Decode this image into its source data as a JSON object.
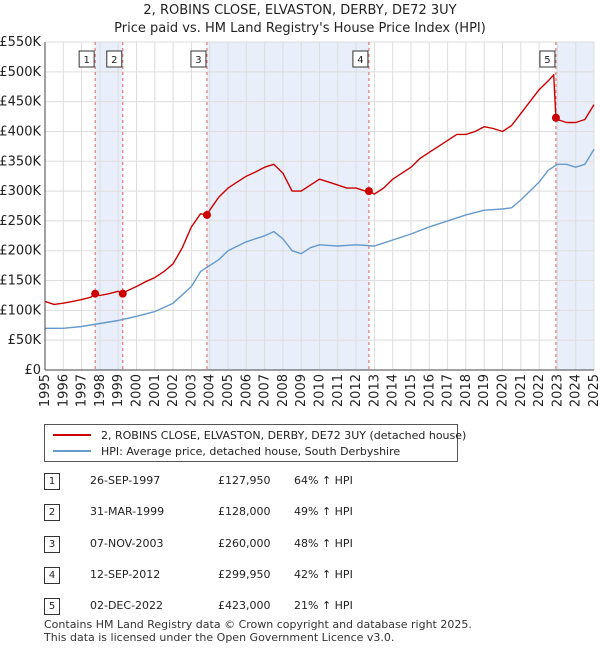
{
  "header": {
    "title": "2, ROBINS CLOSE, ELVASTON, DERBY, DE72 3UY",
    "subtitle": "Price paid vs. HM Land Registry's House Price Index (HPI)"
  },
  "legend": {
    "property_label": "2, ROBINS CLOSE, ELVASTON, DERBY, DE72 3UY (detached house)",
    "hpi_label": "HPI: Average price, detached house, South Derbyshire"
  },
  "colors": {
    "property": "#cc0000",
    "hpi": "#6699cc",
    "shade": "#e8eefa",
    "marker_line": "#e06060"
  },
  "sales": [
    {
      "num": "1",
      "date": "26-SEP-1997",
      "price": "£127,950",
      "hpi": "64% ↑ HPI"
    },
    {
      "num": "2",
      "date": "31-MAR-1999",
      "price": "£128,000",
      "hpi": "49% ↑ HPI"
    },
    {
      "num": "3",
      "date": "07-NOV-2003",
      "price": "£260,000",
      "hpi": "48% ↑ HPI"
    },
    {
      "num": "4",
      "date": "12-SEP-2012",
      "price": "£299,950",
      "hpi": "42% ↑ HPI"
    },
    {
      "num": "5",
      "date": "02-DEC-2022",
      "price": "£423,000",
      "hpi": "21% ↑ HPI"
    }
  ],
  "footer": {
    "line1": "Contains HM Land Registry data © Crown copyright and database right 2025.",
    "line2": "This data is licensed under the Open Government Licence v3.0."
  },
  "chart_data": {
    "type": "line",
    "title": "2, ROBINS CLOSE, ELVASTON, DERBY, DE72 3UY",
    "subtitle": "Price paid vs. HM Land Registry's House Price Index (HPI)",
    "xlabel": "",
    "ylabel": "",
    "xlim": [
      1995,
      2025
    ],
    "ylim": [
      0,
      550000
    ],
    "grid": true,
    "y_ticks": [
      {
        "value": 0,
        "label": "£0"
      },
      {
        "value": 50000,
        "label": "£50K"
      },
      {
        "value": 100000,
        "label": "£100K"
      },
      {
        "value": 150000,
        "label": "£150K"
      },
      {
        "value": 200000,
        "label": "£200K"
      },
      {
        "value": 250000,
        "label": "£250K"
      },
      {
        "value": 300000,
        "label": "£300K"
      },
      {
        "value": 350000,
        "label": "£350K"
      },
      {
        "value": 400000,
        "label": "£400K"
      },
      {
        "value": 450000,
        "label": "£450K"
      },
      {
        "value": 500000,
        "label": "£500K"
      },
      {
        "value": 550000,
        "label": "£550K"
      }
    ],
    "x_ticks": [
      "1995",
      "1996",
      "1997",
      "1998",
      "1999",
      "2000",
      "2001",
      "2002",
      "2003",
      "2004",
      "2005",
      "2006",
      "2007",
      "2008",
      "2009",
      "2010",
      "2011",
      "2012",
      "2013",
      "2014",
      "2015",
      "2016",
      "2017",
      "2018",
      "2019",
      "2020",
      "2021",
      "2022",
      "2023",
      "2024",
      "2025"
    ],
    "shaded_ranges": [
      [
        1997.74,
        1999.25
      ],
      [
        2003.85,
        2012.7
      ],
      [
        2022.92,
        2025.0
      ]
    ],
    "sale_markers": [
      {
        "label": "1",
        "x": 1997.74,
        "y": 127950
      },
      {
        "label": "2",
        "x": 1999.25,
        "y": 128000
      },
      {
        "label": "3",
        "x": 2003.85,
        "y": 260000
      },
      {
        "label": "4",
        "x": 2012.7,
        "y": 299950
      },
      {
        "label": "5",
        "x": 2022.92,
        "y": 423000
      }
    ],
    "series": [
      {
        "name": "2, ROBINS CLOSE, ELVASTON, DERBY, DE72 3UY (detached house)",
        "color": "#cc0000",
        "x": [
          1995.0,
          1995.5,
          1996.0,
          1996.5,
          1997.0,
          1997.5,
          1997.74,
          1998.0,
          1998.5,
          1999.0,
          1999.25,
          1999.5,
          2000.0,
          2000.5,
          2001.0,
          2001.5,
          2002.0,
          2002.5,
          2003.0,
          2003.5,
          2003.85,
          2004.0,
          2004.5,
          2005.0,
          2005.5,
          2006.0,
          2006.5,
          2007.0,
          2007.5,
          2008.0,
          2008.5,
          2009.0,
          2009.5,
          2010.0,
          2010.5,
          2011.0,
          2011.5,
          2012.0,
          2012.5,
          2012.7,
          2013.0,
          2013.5,
          2014.0,
          2014.5,
          2015.0,
          2015.5,
          2016.0,
          2016.5,
          2017.0,
          2017.5,
          2018.0,
          2018.5,
          2019.0,
          2019.5,
          2020.0,
          2020.5,
          2021.0,
          2021.5,
          2022.0,
          2022.5,
          2022.8,
          2022.92,
          2023.0,
          2023.5,
          2024.0,
          2024.5,
          2025.0
        ],
        "values": [
          115000,
          110000,
          112000,
          115000,
          118000,
          122000,
          127950,
          125000,
          128000,
          132000,
          128000,
          133000,
          140000,
          148000,
          155000,
          165000,
          178000,
          205000,
          240000,
          262000,
          260000,
          268000,
          290000,
          305000,
          315000,
          325000,
          332000,
          340000,
          345000,
          330000,
          300000,
          300000,
          310000,
          320000,
          315000,
          310000,
          305000,
          305000,
          300000,
          299950,
          295000,
          305000,
          320000,
          330000,
          340000,
          355000,
          365000,
          375000,
          385000,
          395000,
          395000,
          400000,
          408000,
          405000,
          400000,
          410000,
          430000,
          450000,
          470000,
          485000,
          495000,
          423000,
          420000,
          415000,
          415000,
          420000,
          445000
        ]
      },
      {
        "name": "HPI: Average price, detached house, South Derbyshire",
        "color": "#6699cc",
        "x": [
          1995.0,
          1996.0,
          1997.0,
          1998.0,
          1999.0,
          2000.0,
          2001.0,
          2002.0,
          2003.0,
          2003.5,
          2004.0,
          2004.5,
          2005.0,
          2006.0,
          2007.0,
          2007.5,
          2008.0,
          2008.5,
          2009.0,
          2009.5,
          2010.0,
          2011.0,
          2012.0,
          2013.0,
          2014.0,
          2015.0,
          2016.0,
          2017.0,
          2018.0,
          2019.0,
          2020.0,
          2020.5,
          2021.0,
          2022.0,
          2022.5,
          2023.0,
          2023.5,
          2024.0,
          2024.5,
          2025.0
        ],
        "values": [
          70000,
          70000,
          73000,
          78000,
          83000,
          90000,
          98000,
          112000,
          140000,
          165000,
          175000,
          185000,
          200000,
          215000,
          225000,
          232000,
          220000,
          200000,
          195000,
          205000,
          210000,
          208000,
          210000,
          208000,
          218000,
          228000,
          240000,
          250000,
          260000,
          268000,
          270000,
          272000,
          285000,
          315000,
          335000,
          345000,
          345000,
          340000,
          345000,
          370000
        ]
      }
    ]
  }
}
